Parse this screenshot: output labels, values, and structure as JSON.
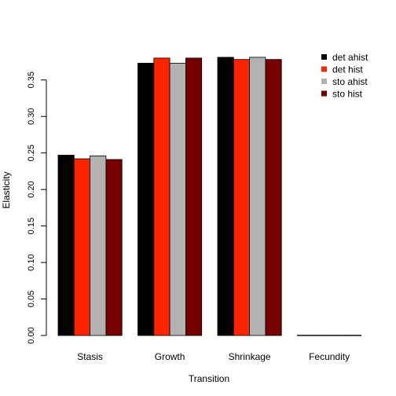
{
  "chart_data": {
    "type": "bar",
    "xlabel": "Transition",
    "ylabel": "Elasticity",
    "categories": [
      "Stasis",
      "Growth",
      "Shrinkage",
      "Fecundity"
    ],
    "series": [
      {
        "name": "det ahist",
        "color": "#000000",
        "values": [
          0.247,
          0.373,
          0.381,
          0.0004
        ]
      },
      {
        "name": "det hist",
        "color": "#ff2400",
        "values": [
          0.242,
          0.38,
          0.378,
          0.0004
        ]
      },
      {
        "name": "sto ahist",
        "color": "#b2b2b2",
        "values": [
          0.246,
          0.373,
          0.381,
          0.0004
        ]
      },
      {
        "name": "sto hist",
        "color": "#760000",
        "values": [
          0.241,
          0.38,
          0.378,
          0.0004
        ]
      }
    ],
    "yticks": [
      "0.00",
      "0.05",
      "0.10",
      "0.15",
      "0.20",
      "0.25",
      "0.30",
      "0.35"
    ],
    "ylim": [
      0,
      0.396
    ],
    "legend_position": "top-right",
    "grid": false
  }
}
